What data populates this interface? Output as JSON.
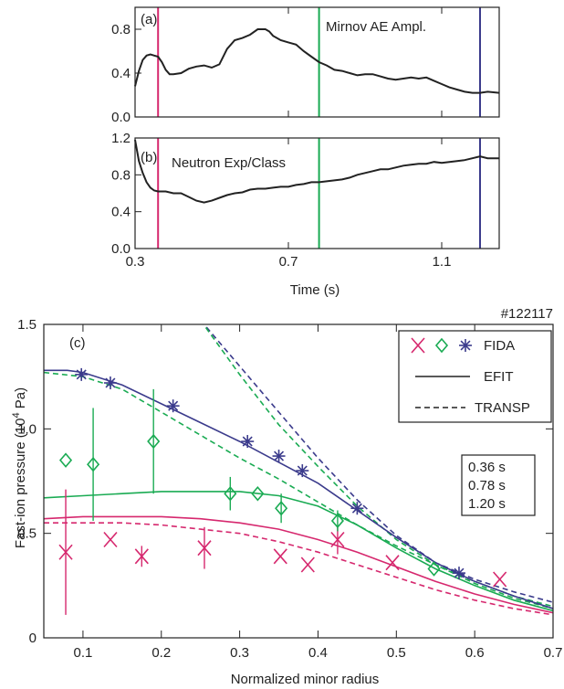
{
  "colors": {
    "t036": "#d6286e",
    "t078": "#1aab53",
    "t120": "#3b3b8c",
    "axis": "#222222"
  },
  "chart_data": [
    {
      "id": "a",
      "type": "line",
      "panel_label": "(a)",
      "annotation": "Mirnov AE Ampl.",
      "xlim": [
        0.3,
        1.25
      ],
      "ylim": [
        0,
        1.0
      ],
      "yticks": [
        0.0,
        0.4,
        0.8
      ],
      "ytick_labels": [
        "0.0",
        "0.4",
        "0.8"
      ],
      "xticks": [
        0.3,
        0.7,
        1.1
      ],
      "vlines": [
        0.36,
        0.78,
        1.2
      ],
      "series": [
        {
          "x": [
            0.3,
            0.31,
            0.32,
            0.33,
            0.34,
            0.35,
            0.36,
            0.37,
            0.38,
            0.39,
            0.4,
            0.42,
            0.44,
            0.46,
            0.48,
            0.5,
            0.52,
            0.54,
            0.56,
            0.58,
            0.6,
            0.62,
            0.64,
            0.65,
            0.66,
            0.68,
            0.7,
            0.72,
            0.74,
            0.76,
            0.78,
            0.8,
            0.82,
            0.84,
            0.86,
            0.88,
            0.9,
            0.92,
            0.94,
            0.96,
            0.98,
            1.0,
            1.02,
            1.04,
            1.06,
            1.08,
            1.1,
            1.12,
            1.14,
            1.16,
            1.18,
            1.2,
            1.22,
            1.25
          ],
          "y": [
            0.28,
            0.42,
            0.52,
            0.56,
            0.57,
            0.56,
            0.55,
            0.5,
            0.43,
            0.39,
            0.39,
            0.4,
            0.44,
            0.46,
            0.47,
            0.45,
            0.48,
            0.62,
            0.7,
            0.72,
            0.75,
            0.8,
            0.8,
            0.78,
            0.74,
            0.7,
            0.68,
            0.66,
            0.6,
            0.55,
            0.5,
            0.47,
            0.43,
            0.42,
            0.4,
            0.38,
            0.39,
            0.39,
            0.37,
            0.35,
            0.34,
            0.35,
            0.36,
            0.35,
            0.36,
            0.33,
            0.3,
            0.27,
            0.25,
            0.23,
            0.22,
            0.22,
            0.23,
            0.22
          ]
        }
      ]
    },
    {
      "id": "b",
      "type": "line",
      "panel_label": "(b)",
      "annotation": "Neutron Exp/Class",
      "xlim": [
        0.3,
        1.25
      ],
      "ylim": [
        0,
        1.2
      ],
      "yticks": [
        0.0,
        0.4,
        0.8,
        1.2
      ],
      "ytick_labels": [
        "0.0",
        "0.4",
        "0.8",
        "1.2"
      ],
      "xticks": [
        0.3,
        0.7,
        1.1
      ],
      "xtick_labels": [
        "0.3",
        "0.7",
        "1.1"
      ],
      "xlabel": "Time (s)",
      "vlines": [
        0.36,
        0.78,
        1.2
      ],
      "series": [
        {
          "x": [
            0.3,
            0.31,
            0.32,
            0.33,
            0.34,
            0.35,
            0.36,
            0.38,
            0.4,
            0.42,
            0.44,
            0.46,
            0.48,
            0.5,
            0.52,
            0.54,
            0.56,
            0.58,
            0.6,
            0.62,
            0.64,
            0.66,
            0.68,
            0.7,
            0.72,
            0.74,
            0.76,
            0.78,
            0.8,
            0.82,
            0.84,
            0.86,
            0.88,
            0.9,
            0.92,
            0.94,
            0.96,
            0.98,
            1.0,
            1.02,
            1.04,
            1.06,
            1.08,
            1.1,
            1.12,
            1.14,
            1.16,
            1.18,
            1.2,
            1.22,
            1.25
          ],
          "y": [
            1.18,
            0.95,
            0.82,
            0.72,
            0.66,
            0.63,
            0.62,
            0.62,
            0.6,
            0.6,
            0.56,
            0.52,
            0.5,
            0.52,
            0.55,
            0.58,
            0.6,
            0.61,
            0.64,
            0.65,
            0.65,
            0.66,
            0.67,
            0.67,
            0.69,
            0.7,
            0.72,
            0.72,
            0.73,
            0.74,
            0.75,
            0.77,
            0.8,
            0.82,
            0.84,
            0.86,
            0.86,
            0.88,
            0.9,
            0.91,
            0.92,
            0.92,
            0.94,
            0.93,
            0.94,
            0.95,
            0.96,
            0.98,
            1.0,
            0.98,
            0.98
          ]
        }
      ]
    },
    {
      "id": "c",
      "type": "scatter",
      "panel_label": "(c)",
      "shot": "#122117",
      "xlim": [
        0.05,
        0.7
      ],
      "ylim": [
        0,
        1.5
      ],
      "xticks": [
        0.1,
        0.2,
        0.3,
        0.4,
        0.5,
        0.6,
        0.7
      ],
      "xtick_labels": [
        "0.1",
        "0.2",
        "0.3",
        "0.4",
        "0.5",
        "0.6",
        "0.7"
      ],
      "yticks": [
        0,
        0.5,
        1.0,
        1.5
      ],
      "ytick_labels": [
        "0",
        "0.5",
        "1.0",
        "1.5"
      ],
      "xlabel": "Normalized minor radius",
      "ylabel_main": "Fast-ion pressure (10",
      "ylabel_sup": "4",
      "ylabel_tail": " Pa)",
      "legend": {
        "fida": "FIDA",
        "efit": "EFIT",
        "transp": "TRANSP"
      },
      "times": [
        "0.36 s",
        "0.78 s",
        "1.20 s"
      ],
      "fida": [
        {
          "time": "0.36 s",
          "color_key": "t036",
          "marker": "x",
          "x": [
            0.078,
            0.135,
            0.175,
            0.255,
            0.352,
            0.387,
            0.425,
            0.495,
            0.632
          ],
          "y": [
            0.41,
            0.47,
            0.39,
            0.43,
            0.39,
            0.35,
            0.47,
            0.36,
            0.28
          ],
          "err": [
            0.3,
            0.0,
            0.05,
            0.1,
            0.0,
            0.0,
            0.07,
            0.0,
            0.0
          ]
        },
        {
          "time": "0.78 s",
          "color_key": "t078",
          "marker": "diamond",
          "x": [
            0.078,
            0.113,
            0.19,
            0.288,
            0.323,
            0.353,
            0.425,
            0.548
          ],
          "y": [
            0.85,
            0.83,
            0.94,
            0.69,
            0.69,
            0.62,
            0.56,
            0.33
          ],
          "err": [
            0.0,
            0.27,
            0.25,
            0.08,
            0.0,
            0.07,
            0.05,
            0.0
          ]
        },
        {
          "time": "1.20 s",
          "color_key": "t120",
          "marker": "asterisk",
          "x": [
            0.098,
            0.135,
            0.215,
            0.31,
            0.35,
            0.38,
            0.45,
            0.58
          ],
          "y": [
            1.26,
            1.22,
            1.11,
            0.94,
            0.87,
            0.8,
            0.62,
            0.31
          ],
          "err": [
            0,
            0,
            0,
            0,
            0,
            0,
            0,
            0
          ]
        }
      ],
      "efit": [
        {
          "time": "0.36 s",
          "color_key": "t036",
          "x": [
            0.05,
            0.1,
            0.15,
            0.2,
            0.25,
            0.3,
            0.35,
            0.4,
            0.45,
            0.5,
            0.55,
            0.6,
            0.65,
            0.7
          ],
          "y": [
            0.57,
            0.58,
            0.58,
            0.58,
            0.57,
            0.55,
            0.52,
            0.47,
            0.41,
            0.34,
            0.27,
            0.21,
            0.16,
            0.12
          ]
        },
        {
          "time": "0.78 s",
          "color_key": "t078",
          "x": [
            0.05,
            0.1,
            0.15,
            0.2,
            0.25,
            0.3,
            0.35,
            0.4,
            0.45,
            0.5,
            0.55,
            0.6,
            0.65,
            0.7
          ],
          "y": [
            0.67,
            0.68,
            0.69,
            0.7,
            0.7,
            0.7,
            0.68,
            0.63,
            0.54,
            0.43,
            0.33,
            0.25,
            0.18,
            0.13
          ]
        },
        {
          "time": "1.20 s",
          "color_key": "t120",
          "x": [
            0.05,
            0.08,
            0.1,
            0.15,
            0.2,
            0.25,
            0.3,
            0.35,
            0.4,
            0.45,
            0.5,
            0.55,
            0.6,
            0.65,
            0.7
          ],
          "y": [
            1.28,
            1.28,
            1.27,
            1.21,
            1.12,
            1.03,
            0.94,
            0.84,
            0.74,
            0.61,
            0.48,
            0.36,
            0.27,
            0.2,
            0.14
          ]
        }
      ],
      "transp": [
        {
          "time": "0.36 s",
          "color_key": "t036",
          "x": [
            0.05,
            0.1,
            0.15,
            0.2,
            0.25,
            0.3,
            0.35,
            0.4,
            0.45,
            0.5,
            0.55,
            0.6,
            0.65,
            0.7
          ],
          "y": [
            0.55,
            0.55,
            0.55,
            0.54,
            0.52,
            0.5,
            0.46,
            0.41,
            0.35,
            0.29,
            0.23,
            0.18,
            0.14,
            0.11
          ]
        },
        {
          "time": "0.78 s",
          "color_key": "t078",
          "x": [
            0.05,
            0.1,
            0.15,
            0.2,
            0.25,
            0.3,
            0.35,
            0.4,
            0.45,
            0.5,
            0.55,
            0.6,
            0.65,
            0.7
          ],
          "y": [
            1.27,
            1.25,
            1.19,
            1.08,
            0.97,
            0.86,
            0.76,
            0.65,
            0.54,
            0.44,
            0.35,
            0.27,
            0.2,
            0.15
          ]
        },
        {
          "time": "1.20 s",
          "color_key": "t120",
          "x": [
            0.25,
            0.3,
            0.35,
            0.4,
            0.45,
            0.5,
            0.55,
            0.6,
            0.65,
            0.7
          ],
          "y": [
            1.52,
            1.3,
            1.08,
            0.86,
            0.66,
            0.49,
            0.36,
            0.28,
            0.22,
            0.17
          ]
        },
        {
          "time": "0.78 s",
          "color_key": "t078",
          "x": [
            0.25,
            0.3,
            0.35,
            0.4,
            0.45,
            0.5,
            0.55,
            0.6,
            0.65,
            0.7
          ],
          "y": [
            1.52,
            1.26,
            1.02,
            0.82,
            0.63,
            0.47,
            0.35,
            0.26,
            0.19,
            0.14
          ]
        }
      ]
    }
  ]
}
